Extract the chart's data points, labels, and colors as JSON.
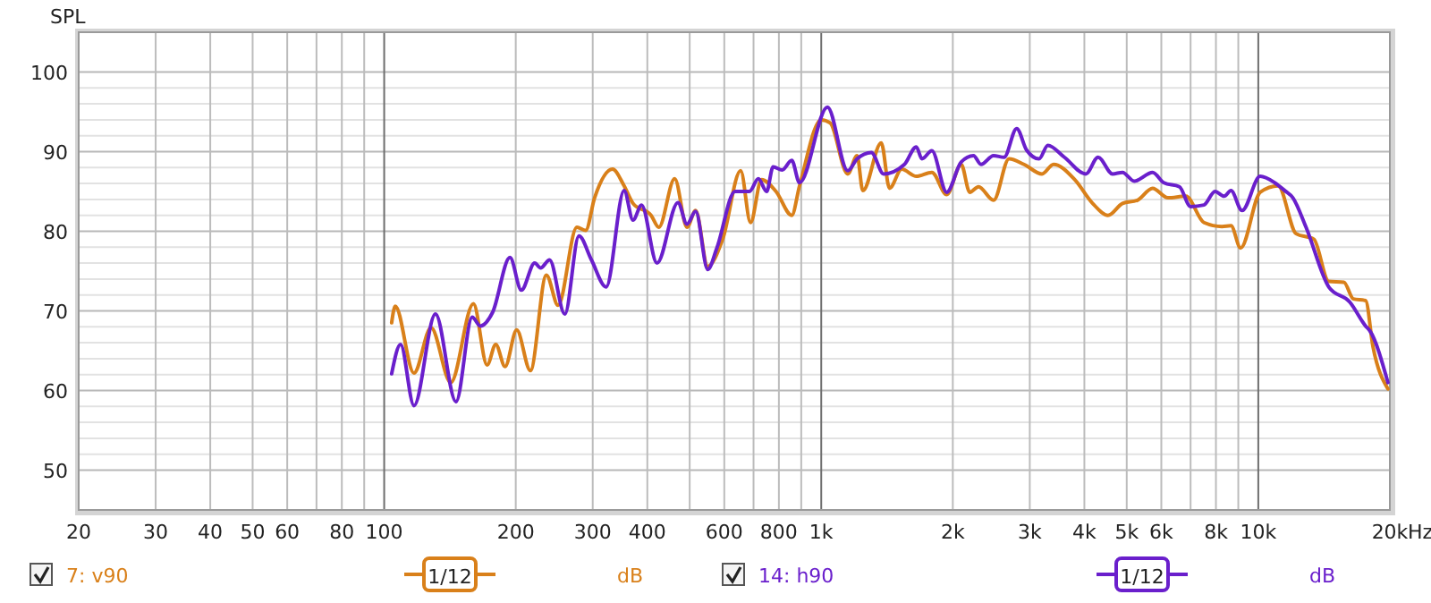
{
  "chart_data": {
    "type": "line",
    "ylabel": "SPL",
    "log": "x",
    "grid": true,
    "legend": "bottom",
    "line_style": "solid",
    "xlim": [
      20,
      20000
    ],
    "ylim": [
      45,
      105
    ],
    "xticks": [
      20,
      30,
      40,
      50,
      60,
      {
        "value": 70,
        "label": null
      },
      80,
      {
        "value": 90,
        "label": null
      },
      100,
      200,
      300,
      400,
      {
        "value": 500,
        "label": null
      },
      600,
      {
        "value": 700,
        "label": null
      },
      800,
      {
        "value": 900,
        "label": null
      },
      {
        "value": 1000,
        "label": "1k"
      },
      {
        "value": 2000,
        "label": "2k"
      },
      {
        "value": 3000,
        "label": "3k"
      },
      {
        "value": 4000,
        "label": "4k"
      },
      {
        "value": 5000,
        "label": "5k"
      },
      {
        "value": 6000,
        "label": "6k"
      },
      {
        "value": 7000,
        "label": null
      },
      {
        "value": 8000,
        "label": "8k"
      },
      {
        "value": 9000,
        "label": null
      },
      {
        "value": 10000,
        "label": "10k"
      },
      {
        "value": 20000,
        "label": "20k"
      }
    ],
    "xlabel": "Hz",
    "yticks": [
      50,
      60,
      70,
      80,
      90,
      100
    ],
    "annotations": [
      "1/12",
      "dB",
      "1/12",
      "dB"
    ],
    "series": [
      {
        "name": "7: v90",
        "color": "#d9801a",
        "x": [
          104,
          106,
          117,
          128,
          142,
          160,
          172,
          180,
          189,
          201,
          216,
          235,
          250,
          276,
          289,
          303,
          333,
          354,
          371,
          408,
          425,
          462,
          493,
          516,
          550,
          595,
          654,
          689,
          730,
          788,
          856,
          892,
          1000,
          1048,
          1150,
          1208,
          1245,
          1372,
          1433,
          1528,
          1650,
          1791,
          1937,
          2090,
          2187,
          2290,
          2479,
          2690,
          2910,
          3200,
          3400,
          3800,
          4178,
          4530,
          4890,
          5290,
          5730,
          6210,
          6830,
          7510,
          8260,
          8660,
          9110,
          10100,
          11100,
          12200,
          13400,
          14500,
          15700,
          16500,
          17600,
          18300,
          19800
        ],
        "values": [
          68.5,
          70.6,
          62.2,
          67.9,
          61,
          70.9,
          63.2,
          65.8,
          63,
          67.6,
          62.5,
          74.5,
          70.7,
          80.5,
          80.1,
          84.2,
          87.8,
          85.7,
          83.5,
          82,
          80.5,
          86.6,
          80.5,
          82.6,
          75.6,
          79,
          87.6,
          81.1,
          86.5,
          85,
          82,
          85.7,
          94,
          93.6,
          87.2,
          89.5,
          85.1,
          91.1,
          85.4,
          87.8,
          86.9,
          87.4,
          84.6,
          88.4,
          84.9,
          85.6,
          83.9,
          89.1,
          88.4,
          87.2,
          88.4,
          86.5,
          83.5,
          82,
          83.5,
          83.9,
          85.4,
          84.2,
          84.4,
          81.1,
          80.6,
          80.7,
          77.9,
          84.9,
          85.7,
          79.7,
          79,
          73.7,
          73.6,
          71.5,
          71.3,
          65.5,
          60.2
        ]
      },
      {
        "name": "14: h90",
        "color": "#6a1fcc",
        "x": [
          104,
          109,
          117,
          131,
          146,
          159,
          166,
          177,
          194,
          206,
          221,
          228,
          239,
          259,
          279,
          298,
          322,
          354,
          371,
          388,
          421,
          470,
          493,
          516,
          550,
          577,
          635,
          685,
          718,
          750,
          776,
          814,
          856,
          892,
          1033,
          1150,
          1208,
          1302,
          1389,
          1550,
          1650,
          1700,
          1791,
          1937,
          2090,
          2230,
          2320,
          2479,
          2620,
          2800,
          2950,
          3150,
          3300,
          3600,
          4030,
          4300,
          4640,
          4890,
          5200,
          5730,
          6080,
          6600,
          7000,
          7510,
          7960,
          8350,
          8660,
          9180,
          10100,
          10900,
          11500,
          12000,
          12860,
          14500,
          16200,
          17600,
          18000,
          19800
        ],
        "values": [
          62.1,
          65.8,
          58.1,
          69.6,
          58.6,
          69.2,
          68.1,
          69.8,
          76.7,
          72.6,
          76,
          75.4,
          76.4,
          69.6,
          79.4,
          76.4,
          73,
          85.1,
          81.4,
          83.3,
          76,
          83.6,
          80.9,
          82.5,
          75.2,
          77.9,
          85,
          85,
          86.6,
          85,
          88.1,
          87.7,
          88.9,
          86.1,
          95.6,
          87.6,
          89.1,
          89.9,
          87.2,
          88.4,
          90.6,
          89.1,
          90.1,
          84.9,
          88.7,
          89.5,
          88.4,
          89.5,
          89.3,
          92.9,
          90.2,
          89.1,
          90.8,
          89.3,
          87.2,
          89.3,
          87.2,
          87.4,
          86.3,
          87.4,
          86.1,
          85.6,
          83.1,
          83.3,
          85,
          84.4,
          85.1,
          82.6,
          86.9,
          86.1,
          85.1,
          84.2,
          80.5,
          73,
          71.1,
          68.1,
          67.5,
          61
        ]
      }
    ]
  }
}
